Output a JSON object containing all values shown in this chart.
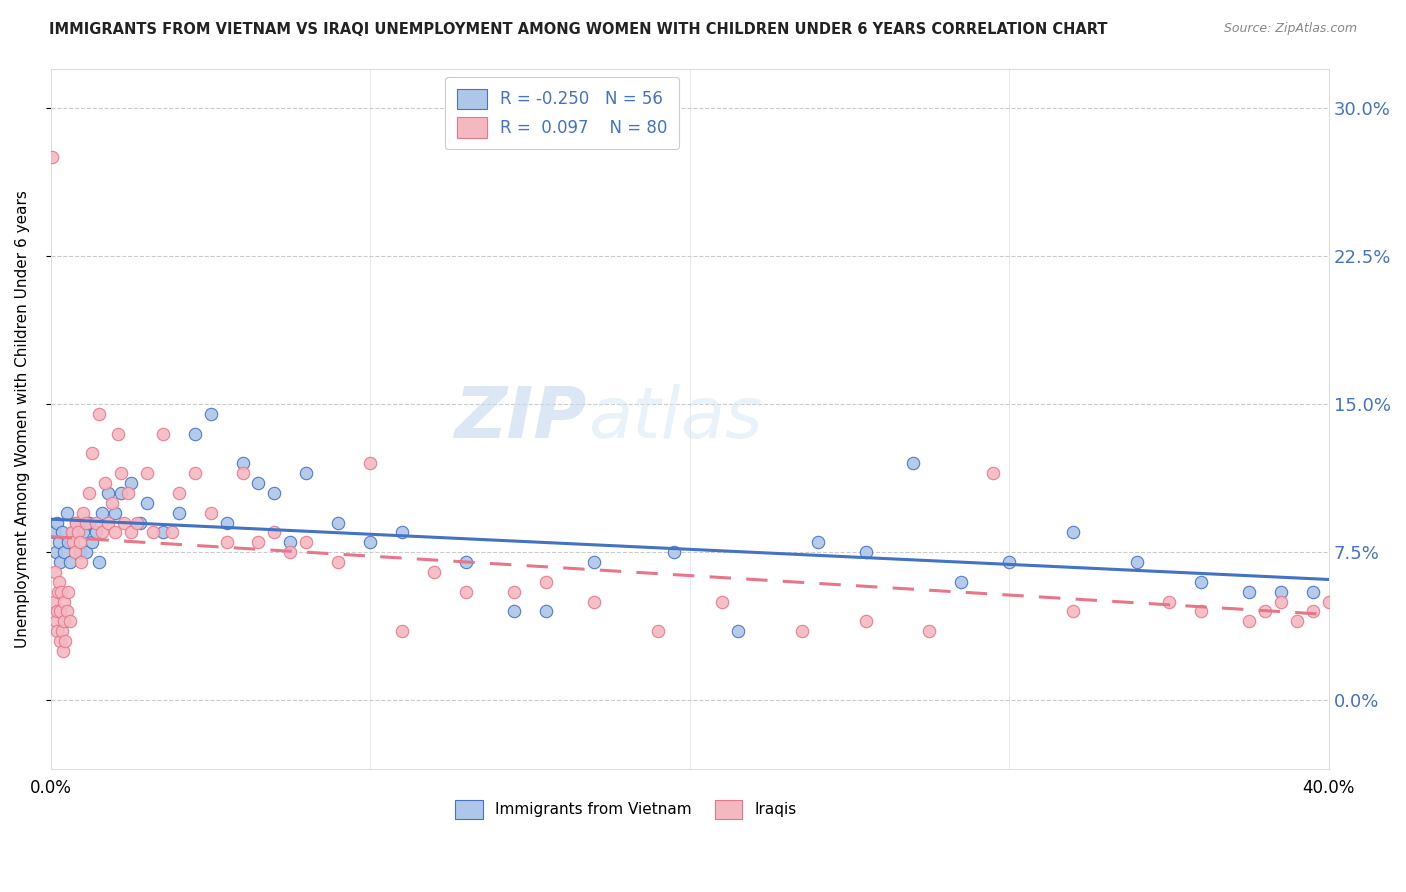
{
  "title": "IMMIGRANTS FROM VIETNAM VS IRAQI UNEMPLOYMENT AMONG WOMEN WITH CHILDREN UNDER 6 YEARS CORRELATION CHART",
  "source": "Source: ZipAtlas.com",
  "ylabel": "Unemployment Among Women with Children Under 6 years",
  "ytick_values": [
    0.0,
    7.5,
    15.0,
    22.5,
    30.0
  ],
  "xlim": [
    0,
    40
  ],
  "ylim": [
    -3.5,
    32
  ],
  "legend_r_vietnam": "-0.250",
  "legend_n_vietnam": "56",
  "legend_r_iraqi": "0.097",
  "legend_n_iraqi": "80",
  "color_vietnam": "#aec6e8",
  "color_iraqi": "#f4b8c1",
  "color_line_vietnam": "#4472c4",
  "color_line_iraqi": "#e8768a",
  "watermark_zip": "ZIP",
  "watermark_atlas": "atlas",
  "vietnam_x": [
    0.1,
    0.15,
    0.2,
    0.25,
    0.3,
    0.35,
    0.4,
    0.5,
    0.55,
    0.6,
    0.7,
    0.8,
    0.9,
    1.0,
    1.1,
    1.2,
    1.3,
    1.4,
    1.5,
    1.6,
    1.8,
    2.0,
    2.2,
    2.5,
    2.8,
    3.0,
    3.5,
    4.0,
    4.5,
    5.0,
    5.5,
    6.0,
    6.5,
    7.0,
    7.5,
    8.0,
    9.0,
    10.0,
    11.0,
    13.0,
    14.5,
    15.5,
    17.0,
    19.5,
    21.5,
    24.0,
    25.5,
    27.0,
    28.5,
    30.0,
    32.0,
    34.0,
    36.0,
    37.5,
    38.5,
    39.5
  ],
  "vietnam_y": [
    8.5,
    7.5,
    9.0,
    8.0,
    7.0,
    8.5,
    7.5,
    9.5,
    8.0,
    7.0,
    8.5,
    9.0,
    7.5,
    8.5,
    7.5,
    9.0,
    8.0,
    8.5,
    7.0,
    9.5,
    10.5,
    9.5,
    10.5,
    11.0,
    9.0,
    10.0,
    8.5,
    9.5,
    13.5,
    14.5,
    9.0,
    12.0,
    11.0,
    10.5,
    8.0,
    11.5,
    9.0,
    8.0,
    8.5,
    7.0,
    4.5,
    4.5,
    7.0,
    7.5,
    3.5,
    8.0,
    7.5,
    12.0,
    6.0,
    7.0,
    8.5,
    7.0,
    6.0,
    5.5,
    5.5,
    5.5
  ],
  "iraqi_x": [
    0.05,
    0.1,
    0.12,
    0.15,
    0.18,
    0.2,
    0.22,
    0.25,
    0.28,
    0.3,
    0.32,
    0.35,
    0.38,
    0.4,
    0.42,
    0.45,
    0.5,
    0.55,
    0.6,
    0.65,
    0.7,
    0.75,
    0.8,
    0.85,
    0.9,
    0.95,
    1.0,
    1.1,
    1.2,
    1.3,
    1.4,
    1.5,
    1.6,
    1.7,
    1.8,
    1.9,
    2.0,
    2.1,
    2.2,
    2.3,
    2.4,
    2.5,
    2.7,
    3.0,
    3.2,
    3.5,
    3.8,
    4.0,
    4.5,
    5.0,
    5.5,
    6.0,
    6.5,
    7.0,
    7.5,
    8.0,
    9.0,
    10.0,
    11.0,
    12.0,
    13.0,
    14.5,
    15.5,
    17.0,
    19.0,
    21.0,
    23.5,
    25.5,
    27.5,
    29.5,
    32.0,
    35.0,
    36.0,
    37.5,
    38.0,
    38.5,
    39.0,
    39.5,
    40.0,
    40.5
  ],
  "iraqi_y": [
    27.5,
    5.0,
    6.5,
    4.0,
    3.5,
    4.5,
    5.5,
    6.0,
    3.0,
    4.5,
    5.5,
    3.5,
    2.5,
    4.0,
    5.0,
    3.0,
    4.5,
    5.5,
    4.0,
    8.5,
    8.0,
    7.5,
    9.0,
    8.5,
    8.0,
    7.0,
    9.5,
    9.0,
    10.5,
    12.5,
    9.0,
    14.5,
    8.5,
    11.0,
    9.0,
    10.0,
    8.5,
    13.5,
    11.5,
    9.0,
    10.5,
    8.5,
    9.0,
    11.5,
    8.5,
    13.5,
    8.5,
    10.5,
    11.5,
    9.5,
    8.0,
    11.5,
    8.0,
    8.5,
    7.5,
    8.0,
    7.0,
    12.0,
    3.5,
    6.5,
    5.5,
    5.5,
    6.0,
    5.0,
    3.5,
    5.0,
    3.5,
    4.0,
    3.5,
    11.5,
    4.5,
    5.0,
    4.5,
    4.0,
    4.5,
    5.0,
    4.0,
    4.5,
    5.0,
    4.5
  ]
}
